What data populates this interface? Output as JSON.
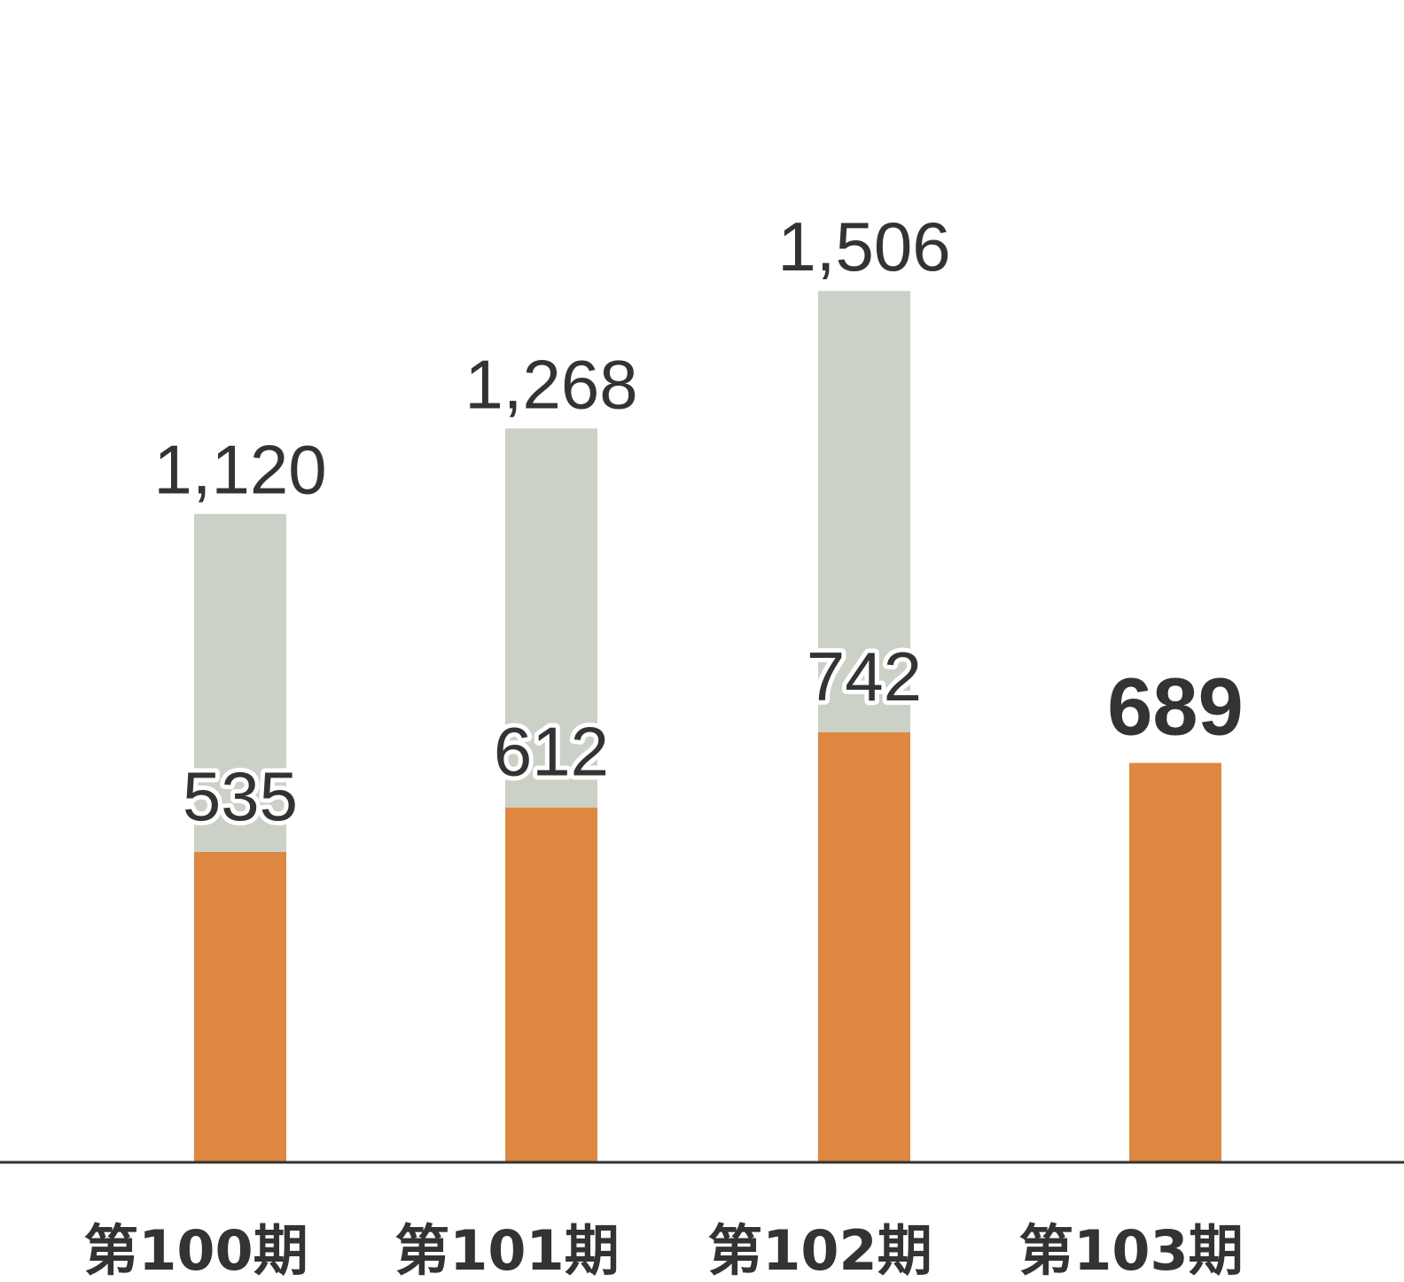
{
  "chart_data": {
    "type": "bar",
    "stacked": true,
    "categories": [
      "第100期",
      "第101期",
      "第102期",
      "第103期"
    ],
    "totals": [
      "1,120",
      "1,268",
      "1,506",
      ""
    ],
    "series": [
      {
        "values": [
          535,
          612,
          742,
          689
        ],
        "labels": [
          "535",
          "612",
          "742",
          "689"
        ],
        "color": "#DE8740"
      },
      {
        "values": [
          585,
          656,
          764,
          null
        ],
        "color": "#CBD1C6"
      }
    ],
    "total_values": [
      1120,
      1268,
      1506,
      null
    ],
    "highlight_index": 3,
    "axis_color": "#333333",
    "title": "",
    "xlabel": "",
    "ylabel": "",
    "ylim": [
      0,
      1800
    ],
    "grid": false,
    "legend": "none"
  }
}
